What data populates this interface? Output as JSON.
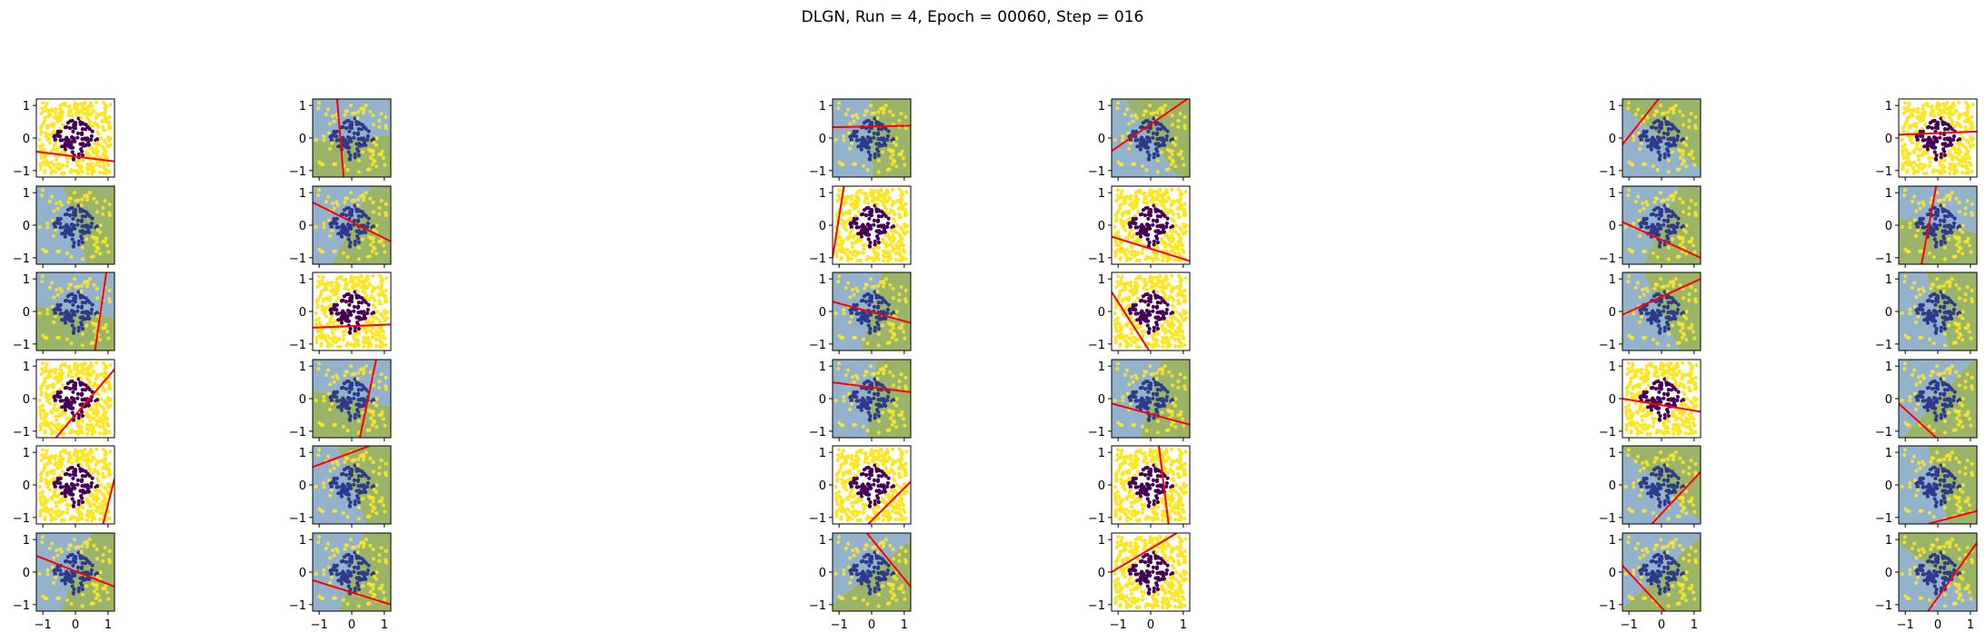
{
  "figure": {
    "title": "DLGN, Run = 4, Epoch = 00060, Step = 016"
  },
  "chart_data": {
    "type": "scatter",
    "title": "DLGN, Run = 4, Epoch = 00060, Step = 016",
    "grid": "6 rows x 6 columns of small scatter panels",
    "shared_axes": {
      "xlim": [
        -1.2,
        1.2
      ],
      "ylim": [
        -1.2,
        1.2
      ],
      "xticks": [
        -1,
        0,
        1
      ],
      "yticks": [
        -1,
        0,
        1
      ],
      "xtick_labels": [
        "−1",
        "0",
        "1"
      ],
      "ytick_labels": [
        "−1",
        "0",
        "1"
      ],
      "x_tick_labels_on_bottom_row_only": true
    },
    "data_description": {
      "inner_class": "points inside the diamond |x|+|y|<0.75 (dark purple)",
      "outer_class": "points outside the diamond (yellow)",
      "colors": {
        "inner": "#440154",
        "outer": "#fde725",
        "halfplane_a": "#9ab56a",
        "halfplane_b": "#93b2cc",
        "boundary_line": "#ff0000",
        "arrow": "#3b52e0"
      }
    },
    "panels": [
      {
        "row": 1,
        "col": 1,
        "line": [
          [
            -1.2,
            -0.42
          ],
          [
            1.2,
            -0.72
          ]
        ],
        "shaded": false
      },
      {
        "row": 1,
        "col": 2,
        "line": [
          [
            -0.45,
            1.2
          ],
          [
            -0.25,
            -1.2
          ]
        ],
        "shaded": true
      },
      {
        "row": 1,
        "col": 3,
        "line": [
          [
            -1.2,
            0.33
          ],
          [
            1.2,
            0.38
          ]
        ],
        "shaded": true
      },
      {
        "row": 1,
        "col": 4,
        "line": [
          [
            -1.2,
            -0.4
          ],
          [
            1.2,
            1.25
          ]
        ],
        "shaded": true
      },
      {
        "row": 1,
        "col": 5,
        "line": [
          [
            -1.2,
            -0.2
          ],
          [
            -0.05,
            1.25
          ]
        ],
        "shaded": true
      },
      {
        "row": 1,
        "col": 6,
        "line": [
          [
            -1.2,
            0.1
          ],
          [
            1.2,
            0.2
          ]
        ],
        "shaded": false
      },
      {
        "row": 2,
        "col": 1,
        "line": null,
        "shaded": true
      },
      {
        "row": 2,
        "col": 2,
        "line": [
          [
            -1.2,
            0.7
          ],
          [
            1.2,
            -0.5
          ]
        ],
        "shaded": true
      },
      {
        "row": 2,
        "col": 3,
        "line": [
          [
            -0.85,
            1.2
          ],
          [
            -1.2,
            -1.0
          ]
        ],
        "shaded": false
      },
      {
        "row": 2,
        "col": 4,
        "line": [
          [
            -1.2,
            -0.35
          ],
          [
            1.2,
            -1.1
          ]
        ],
        "shaded": false
      },
      {
        "row": 2,
        "col": 5,
        "line": [
          [
            -1.2,
            0.1
          ],
          [
            1.2,
            -1.0
          ]
        ],
        "shaded": true
      },
      {
        "row": 2,
        "col": 6,
        "line": [
          [
            -0.05,
            1.2
          ],
          [
            -0.5,
            -1.2
          ]
        ],
        "shaded": true
      },
      {
        "row": 3,
        "col": 1,
        "line": [
          [
            0.95,
            1.2
          ],
          [
            0.6,
            -1.2
          ]
        ],
        "shaded": true
      },
      {
        "row": 3,
        "col": 2,
        "line": [
          [
            -1.2,
            -0.5
          ],
          [
            1.2,
            -0.4
          ]
        ],
        "shaded": false
      },
      {
        "row": 3,
        "col": 3,
        "line": [
          [
            -1.2,
            0.3
          ],
          [
            1.2,
            -0.35
          ]
        ],
        "shaded": true
      },
      {
        "row": 3,
        "col": 4,
        "line": [
          [
            -1.2,
            0.6
          ],
          [
            -0.05,
            -1.2
          ]
        ],
        "shaded": false
      },
      {
        "row": 3,
        "col": 5,
        "line": [
          [
            -1.2,
            -0.1
          ],
          [
            1.2,
            1.0
          ]
        ],
        "shaded": true
      },
      {
        "row": 3,
        "col": 6,
        "line": null,
        "shaded": true
      },
      {
        "row": 4,
        "col": 1,
        "line": [
          [
            -0.6,
            -1.2
          ],
          [
            1.2,
            0.9
          ]
        ],
        "shaded": false
      },
      {
        "row": 4,
        "col": 2,
        "line": [
          [
            0.75,
            1.2
          ],
          [
            0.25,
            -1.2
          ]
        ],
        "shaded": true
      },
      {
        "row": 4,
        "col": 3,
        "line": [
          [
            -1.2,
            0.5
          ],
          [
            1.2,
            0.2
          ]
        ],
        "shaded": true
      },
      {
        "row": 4,
        "col": 4,
        "line": [
          [
            -1.2,
            -0.15
          ],
          [
            1.2,
            -0.8
          ]
        ],
        "shaded": true
      },
      {
        "row": 4,
        "col": 5,
        "line": [
          [
            -1.2,
            0.0
          ],
          [
            1.2,
            -0.4
          ]
        ],
        "shaded": false
      },
      {
        "row": 4,
        "col": 6,
        "line": [
          [
            -1.2,
            -0.15
          ],
          [
            -0.05,
            -1.2
          ]
        ],
        "shaded": true
      },
      {
        "row": 5,
        "col": 1,
        "line": [
          [
            1.2,
            0.2
          ],
          [
            0.85,
            -1.2
          ]
        ],
        "shaded": false
      },
      {
        "row": 5,
        "col": 2,
        "line": [
          [
            -1.2,
            0.55
          ],
          [
            0.55,
            1.2
          ]
        ],
        "shaded": true
      },
      {
        "row": 5,
        "col": 3,
        "line": [
          [
            -0.1,
            -1.2
          ],
          [
            1.2,
            0.1
          ]
        ],
        "shaded": false
      },
      {
        "row": 5,
        "col": 4,
        "line": [
          [
            0.25,
            1.2
          ],
          [
            0.55,
            -1.2
          ]
        ],
        "shaded": false
      },
      {
        "row": 5,
        "col": 5,
        "line": [
          [
            -0.3,
            -1.2
          ],
          [
            1.2,
            0.4
          ]
        ],
        "shaded": true
      },
      {
        "row": 5,
        "col": 6,
        "line": [
          [
            -0.3,
            -1.2
          ],
          [
            1.2,
            -0.8
          ]
        ],
        "shaded": true
      },
      {
        "row": 6,
        "col": 1,
        "line": [
          [
            -1.2,
            0.5
          ],
          [
            1.2,
            -0.45
          ]
        ],
        "shaded": true
      },
      {
        "row": 6,
        "col": 2,
        "line": [
          [
            -1.2,
            -0.25
          ],
          [
            1.2,
            -1.0
          ]
        ],
        "shaded": true
      },
      {
        "row": 6,
        "col": 3,
        "line": [
          [
            -0.15,
            1.2
          ],
          [
            1.2,
            -0.45
          ]
        ],
        "shaded": true
      },
      {
        "row": 6,
        "col": 4,
        "line": [
          [
            -1.2,
            0.0
          ],
          [
            0.8,
            1.2
          ]
        ],
        "shaded": false
      },
      {
        "row": 6,
        "col": 5,
        "line": [
          [
            -1.2,
            0.2
          ],
          [
            0.1,
            -1.2
          ]
        ],
        "shaded": true
      },
      {
        "row": 6,
        "col": 6,
        "line": [
          [
            -0.3,
            -1.2
          ],
          [
            1.2,
            0.9
          ]
        ],
        "shaded": true
      }
    ]
  }
}
